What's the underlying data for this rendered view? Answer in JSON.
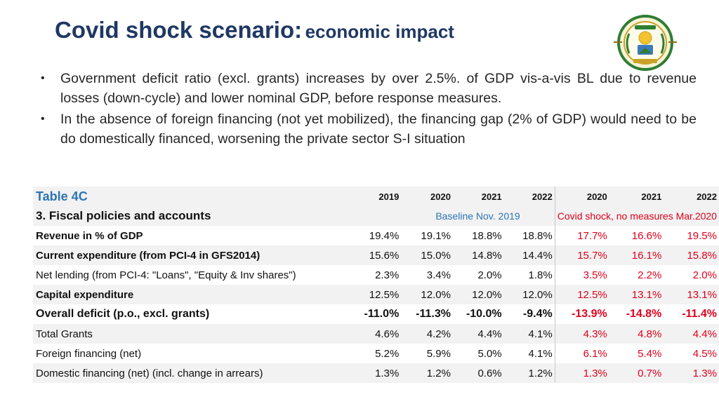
{
  "slide": {
    "title_main": "Covid shock scenario:",
    "title_sub": "economic impact",
    "emblem_icon": "rwanda-coat-of-arms",
    "bullets": [
      "Government deficit ratio (excl. grants) increases by over 2.5%. of GDP vis-a-vis BL due to revenue losses (down-cycle) and lower nominal GDP, before response measures.",
      "In the absence of foreign financing (not yet mobilized), the financing gap (2% of GDP) would need to be do domestically financed, worsening the private sector S-I situation"
    ]
  },
  "table": {
    "title": "Table 4C",
    "section": "3. Fiscal policies and accounts",
    "years": [
      "2019",
      "2020",
      "2021",
      "2022",
      "2020",
      "2021",
      "2022"
    ],
    "baseline_label": "Baseline Nov. 2019",
    "shock_label": "Covid shock, no measures Mar.2020",
    "colors": {
      "title": "#2e74b5",
      "shock": "#e0001b",
      "header": "#1f3864"
    },
    "rows": [
      {
        "label": "Revenue in % of GDP",
        "values": [
          "19.4%",
          "19.1%",
          "18.8%",
          "18.8%",
          "17.7%",
          "16.6%",
          "19.5%"
        ]
      },
      {
        "label": "Current expenditure (from PCI-4 in GFS2014)",
        "values": [
          "15.6%",
          "15.0%",
          "14.8%",
          "14.4%",
          "15.7%",
          "16.1%",
          "15.8%"
        ]
      },
      {
        "label": "Net lending (from PCI-4: \"Loans\", \"Equity & Inv shares\")",
        "values": [
          "2.3%",
          "3.4%",
          "2.0%",
          "1.8%",
          "3.5%",
          "2.2%",
          "2.0%"
        ]
      },
      {
        "label": "Capital expenditure",
        "values": [
          "12.5%",
          "12.0%",
          "12.0%",
          "12.0%",
          "12.5%",
          "13.1%",
          "13.1%"
        ]
      },
      {
        "label": "Overall deficit (p.o., excl. grants)",
        "values": [
          "-11.0%",
          "-11.3%",
          "-10.0%",
          "-9.4%",
          "-13.9%",
          "-14.8%",
          "-11.4%"
        ]
      },
      {
        "label": "Total Grants",
        "values": [
          "4.6%",
          "4.2%",
          "4.4%",
          "4.1%",
          "4.3%",
          "4.8%",
          "4.4%"
        ]
      },
      {
        "label": "Foreign financing (net)",
        "values": [
          "5.2%",
          "5.9%",
          "5.0%",
          "4.1%",
          "6.1%",
          "5.4%",
          "4.5%"
        ]
      },
      {
        "label": "Domestic financing (net) (incl. change in arrears)",
        "values": [
          "1.3%",
          "1.2%",
          "0.6%",
          "1.2%",
          "1.3%",
          "0.7%",
          "1.3%"
        ]
      }
    ]
  }
}
